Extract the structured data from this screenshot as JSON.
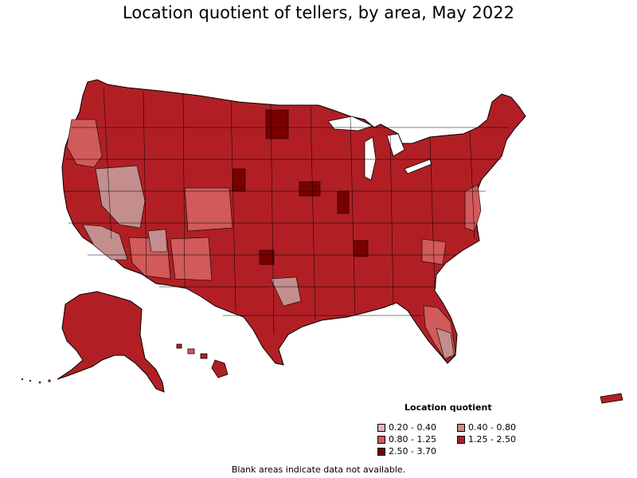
{
  "title": "Location quotient of tellers, by area, May 2022",
  "legend": {
    "title": "Location quotient",
    "items": [
      {
        "label": "0.20 - 0.40",
        "color": "#e8b4b8"
      },
      {
        "label": "0.40 - 0.80",
        "color": "#c48e8e"
      },
      {
        "label": "0.80 - 1.25",
        "color": "#d15a5a"
      },
      {
        "label": "1.25 - 2.50",
        "color": "#b11f24"
      },
      {
        "label": "2.50 - 3.70",
        "color": "#7a0000"
      }
    ]
  },
  "footnote": "Blank areas indicate data not available.",
  "colors": {
    "border": "#000000",
    "background": "#ffffff"
  }
}
